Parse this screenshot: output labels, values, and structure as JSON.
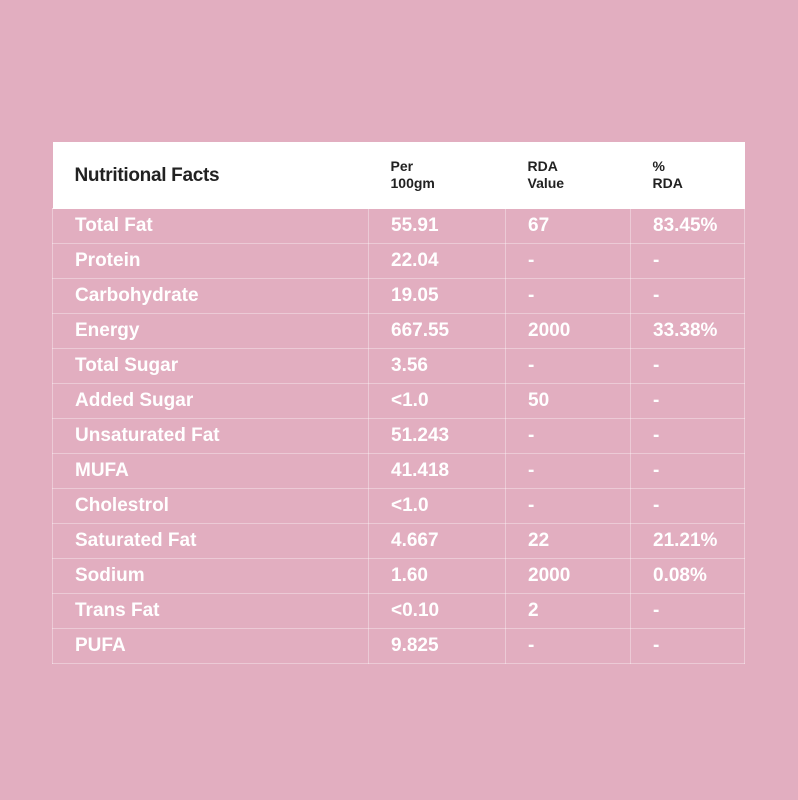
{
  "table": {
    "header": [
      [
        "Nutritional Facts"
      ],
      [
        "Per",
        "100gm"
      ],
      [
        "RDA",
        "Value"
      ],
      [
        "%",
        "RDA"
      ]
    ],
    "rows": [
      [
        "Total Fat",
        "55.91",
        "67",
        "83.45%"
      ],
      [
        "Protein",
        "22.04",
        "-",
        "-"
      ],
      [
        "Carbohydrate",
        "19.05",
        "-",
        "-"
      ],
      [
        "Energy",
        "667.55",
        "2000",
        "33.38%"
      ],
      [
        "Total Sugar",
        "3.56",
        "-",
        "-"
      ],
      [
        "Added Sugar",
        "<1.0",
        "50",
        "-"
      ],
      [
        "Unsaturated Fat",
        "51.243",
        "-",
        "-"
      ],
      [
        "MUFA",
        "41.418",
        "-",
        "-"
      ],
      [
        "Cholestrol",
        "<1.0",
        "-",
        "-"
      ],
      [
        "Saturated Fat",
        "4.667",
        "22",
        "21.21%"
      ],
      [
        "Sodium",
        "1.60",
        "2000",
        "0.08%"
      ],
      [
        "Trans Fat",
        "<0.10",
        "2",
        "-"
      ],
      [
        "PUFA",
        "9.825",
        "-",
        "-"
      ]
    ]
  }
}
